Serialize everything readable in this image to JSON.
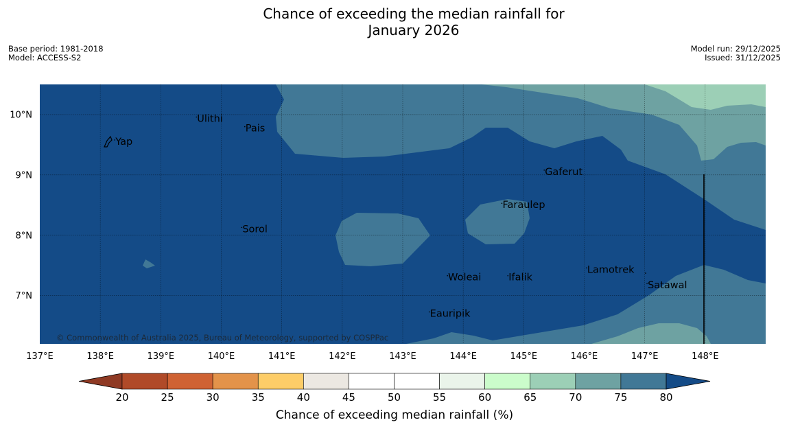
{
  "title_line1": "Chance of exceeding the median rainfall for",
  "title_line2": "January 2026",
  "base_period": "Base period: 1981-2018",
  "model": "Model: ACCESS-S2",
  "model_run": "Model run: 29/12/2025",
  "issued": "Issued: 31/12/2025",
  "copyright": "© Commonwealth of Australia 2025, Bureau of Meteorology, supported by COSPPac",
  "map": {
    "lon_range": [
      137,
      149
    ],
    "lat_range": [
      6.2,
      10.5
    ],
    "lon_ticks": [
      "137°E",
      "138°E",
      "139°E",
      "140°E",
      "141°E",
      "142°E",
      "143°E",
      "144°E",
      "145°E",
      "146°E",
      "147°E",
      "148°E"
    ],
    "lat_ticks": [
      "10°N",
      "9°N",
      "8°N",
      "7°N"
    ],
    "places": [
      {
        "name": "Yap",
        "lon": 138.25,
        "lat": 9.5
      },
      {
        "name": "Ulithi",
        "lon": 139.6,
        "lat": 9.88
      },
      {
        "name": "Pais",
        "lon": 140.4,
        "lat": 9.72
      },
      {
        "name": "Gaferut",
        "lon": 145.35,
        "lat": 9.0
      },
      {
        "name": "Faraulep",
        "lon": 144.65,
        "lat": 8.45
      },
      {
        "name": "Sorol",
        "lon": 140.35,
        "lat": 8.05
      },
      {
        "name": "Lamotrek",
        "lon": 146.05,
        "lat": 7.38
      },
      {
        "name": "Satawal",
        "lon": 147.05,
        "lat": 7.12
      },
      {
        "name": "Woleai",
        "lon": 143.75,
        "lat": 7.25
      },
      {
        "name": "Ifalik",
        "lon": 144.75,
        "lat": 7.25
      },
      {
        "name": "Eauripik",
        "lon": 143.45,
        "lat": 6.65
      }
    ]
  },
  "colorbar": {
    "ticks": [
      "20",
      "25",
      "30",
      "35",
      "40",
      "45",
      "50",
      "55",
      "60",
      "65",
      "70",
      "75",
      "80"
    ],
    "label": "Chance of exceeding median rainfall (%)",
    "colors": {
      "below_20": "#8f3a24",
      "20_25": "#b04a28",
      "25_30": "#cf6233",
      "30_35": "#e3934a",
      "35_40": "#fdcd68",
      "40_45": "#ece8e2",
      "45_50": "#ffffff",
      "50_55": "#ffffff",
      "55_60": "#eaf4ea",
      "60_65": "#cbfccb",
      "65_70": "#9ccfb6",
      "70_75": "#6ea2a2",
      "75_80": "#417896",
      "above_80": "#144b87"
    }
  }
}
